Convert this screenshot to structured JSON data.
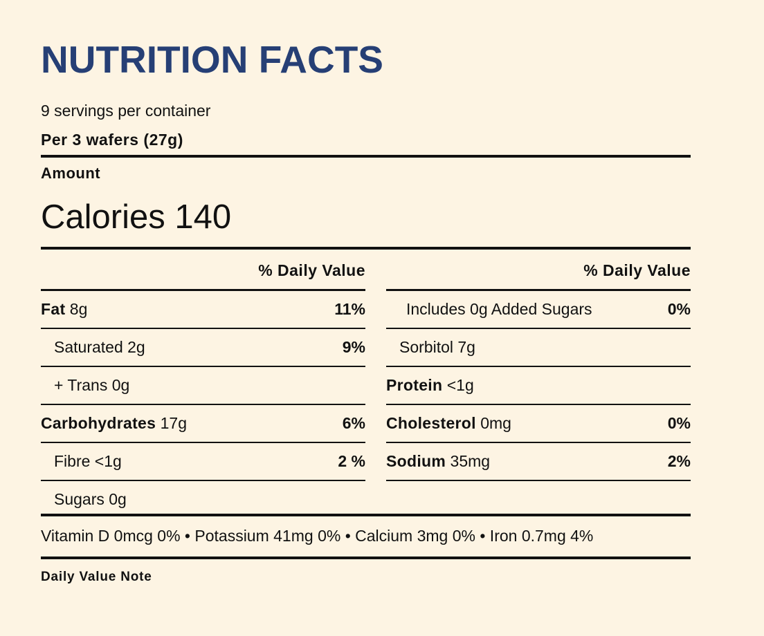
{
  "title": "NUTRITION FACTS",
  "servings": "9 servings per container",
  "serving_size": "Per 3 wafers (27g)",
  "amount_label": "Amount",
  "calories": "Calories 140",
  "dv_header": "% Daily Value",
  "left_rows": [
    {
      "name": "Fat",
      "amount": "8g",
      "pct": "11%"
    },
    {
      "name": "Saturated 2g",
      "pct": "9%"
    },
    {
      "name": "+ Trans 0g"
    },
    {
      "name": "Carbohydrates",
      "amount": "17g",
      "pct": "6%"
    },
    {
      "name": "Fibre <1g",
      "pct": "2 %"
    },
    {
      "name": "Sugars 0g"
    }
  ],
  "right_rows": [
    {
      "name": "Includes 0g Added Sugars",
      "pct": "0%"
    },
    {
      "name": "Sorbitol 7g"
    },
    {
      "name": "Protein",
      "amount": "<1g"
    },
    {
      "name": "Cholesterol",
      "amount": "0mg",
      "pct": "0%"
    },
    {
      "name": "Sodium",
      "amount": "35mg",
      "pct": "2%"
    }
  ],
  "micronutrients": "Vitamin D 0mcg 0% • Potassium 41mg 0% • Calcium 3mg 0% • Iron 0.7mg 4%",
  "note": "Daily Value Note"
}
